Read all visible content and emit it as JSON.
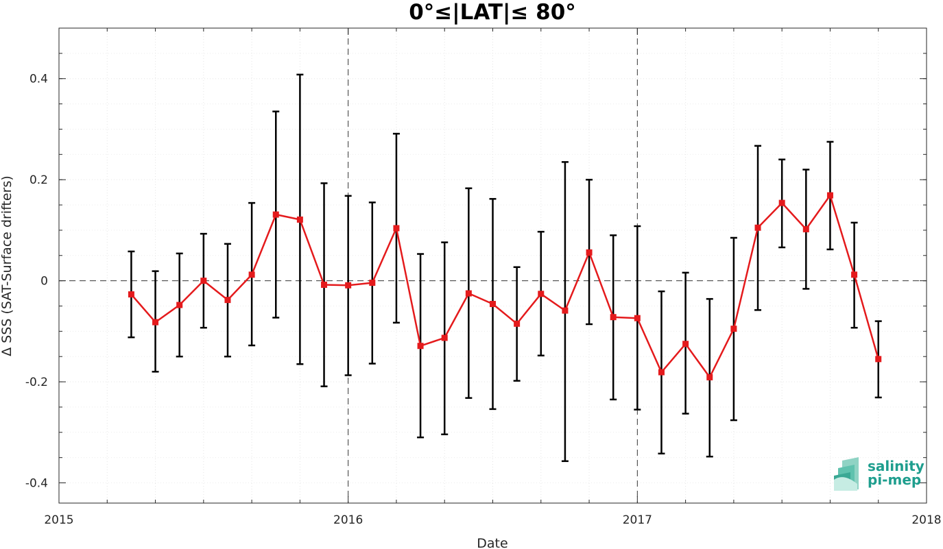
{
  "chart_data": {
    "type": "line",
    "title": "0°≤|LAT|≤ 80°",
    "xlabel": "Date",
    "ylabel": "Δ SSS (SAT-Surface drifters)",
    "xlim": [
      2015,
      2018
    ],
    "ylim": [
      -0.44,
      0.5
    ],
    "xticks": [
      2015,
      2016,
      2017,
      2018
    ],
    "xtick_labels": [
      "2015",
      "2016",
      "2017",
      "2018"
    ],
    "yticks": [
      -0.4,
      -0.2,
      0,
      0.2,
      0.4
    ],
    "ytick_labels": [
      "-0.4",
      "-0.2",
      "0",
      "0.2",
      "0.4"
    ],
    "grid": true,
    "reference_lines": {
      "horizontal": [
        0
      ],
      "vertical": [
        2016,
        2017
      ]
    },
    "series": [
      {
        "color": "#e41a1c",
        "marker": "square",
        "x": [
          "2015-04",
          "2015-05",
          "2015-06",
          "2015-07",
          "2015-08",
          "2015-09",
          "2015-10",
          "2015-11",
          "2015-12",
          "2016-01",
          "2016-02",
          "2016-03",
          "2016-04",
          "2016-05",
          "2016-06",
          "2016-07",
          "2016-08",
          "2016-09",
          "2016-10",
          "2016-11",
          "2016-12",
          "2017-01",
          "2017-02",
          "2017-03",
          "2017-04",
          "2017-05",
          "2017-06",
          "2017-07",
          "2017-08",
          "2017-09",
          "2017-10",
          "2017-11"
        ],
        "values": [
          -0.027,
          -0.082,
          -0.048,
          0.0,
          -0.038,
          0.012,
          0.131,
          0.121,
          -0.008,
          -0.009,
          -0.004,
          0.104,
          -0.129,
          -0.113,
          -0.025,
          -0.046,
          -0.085,
          -0.026,
          -0.059,
          0.056,
          -0.072,
          -0.074,
          -0.181,
          -0.125,
          -0.191,
          -0.095,
          0.105,
          0.154,
          0.102,
          0.169,
          0.012,
          -0.155
        ],
        "error_lower": [
          -0.112,
          -0.18,
          -0.15,
          -0.093,
          -0.15,
          -0.128,
          -0.073,
          -0.165,
          -0.209,
          -0.187,
          -0.164,
          -0.083,
          -0.31,
          -0.304,
          -0.232,
          -0.254,
          -0.198,
          -0.148,
          -0.357,
          -0.086,
          -0.235,
          -0.255,
          -0.342,
          -0.263,
          -0.348,
          -0.276,
          -0.058,
          0.066,
          -0.016,
          0.062,
          -0.093,
          -0.231
        ],
        "error_upper": [
          0.058,
          0.019,
          0.054,
          0.093,
          0.073,
          0.154,
          0.335,
          0.408,
          0.193,
          0.168,
          0.155,
          0.291,
          0.053,
          0.076,
          0.183,
          0.162,
          0.027,
          0.097,
          0.235,
          0.2,
          0.09,
          0.108,
          -0.021,
          0.016,
          -0.036,
          0.085,
          0.267,
          0.24,
          0.22,
          0.275,
          0.115,
          -0.08
        ]
      }
    ]
  },
  "logo": {
    "line1": "salinity",
    "line2": "pi-mep",
    "color": "#1e9e8e"
  }
}
